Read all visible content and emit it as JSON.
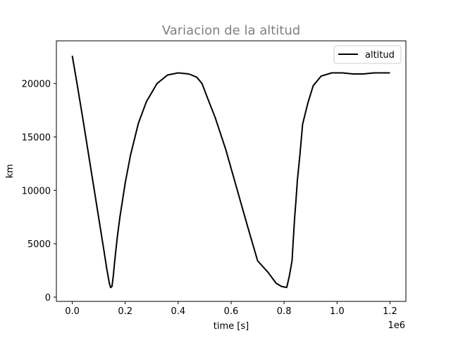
{
  "chart_data": {
    "type": "line",
    "title": "Variacion de la altitud",
    "xlabel": "time [s]",
    "ylabel": "km",
    "x_offset_label": "1e6",
    "xlim": [
      -0.06,
      1.26
    ],
    "ylim": [
      -400,
      24000
    ],
    "xticks": [
      0.0,
      0.2,
      0.4,
      0.6,
      0.8,
      1.0,
      1.2
    ],
    "xtick_labels": [
      "0.0",
      "0.2",
      "0.4",
      "0.6",
      "0.8",
      "1.0",
      "1.2"
    ],
    "yticks": [
      0,
      5000,
      10000,
      15000,
      20000
    ],
    "ytick_labels": [
      "0",
      "5000",
      "10000",
      "15000",
      "20000"
    ],
    "grid": false,
    "legend": {
      "position": "top-right",
      "entries": [
        "altitud"
      ]
    },
    "series": [
      {
        "name": "altitud",
        "color": "#000000",
        "x": [
          0.0,
          0.02,
          0.04,
          0.06,
          0.08,
          0.1,
          0.12,
          0.13,
          0.14,
          0.145,
          0.15,
          0.155,
          0.16,
          0.17,
          0.18,
          0.2,
          0.22,
          0.25,
          0.28,
          0.32,
          0.36,
          0.4,
          0.44,
          0.47,
          0.49,
          0.51,
          0.54,
          0.58,
          0.62,
          0.66,
          0.7,
          0.74,
          0.77,
          0.79,
          0.81,
          0.82,
          0.83,
          0.835,
          0.84,
          0.845,
          0.85,
          0.86,
          0.87,
          0.89,
          0.91,
          0.94,
          0.98,
          1.02,
          1.06,
          1.1,
          1.14,
          1.18,
          1.2
        ],
        "y": [
          22600,
          19700,
          16700,
          13600,
          10500,
          7400,
          4300,
          2700,
          1300,
          900,
          1000,
          2000,
          3300,
          5600,
          7500,
          10700,
          13300,
          16300,
          18300,
          20000,
          20800,
          21000,
          20900,
          20600,
          20000,
          18700,
          16800,
          13800,
          10300,
          6800,
          3400,
          2300,
          1300,
          1000,
          900,
          2000,
          3400,
          5500,
          7500,
          9100,
          10900,
          13400,
          16200,
          18200,
          19800,
          20700,
          21000,
          21000,
          20900,
          20900,
          21000,
          21000,
          21000
        ]
      }
    ]
  }
}
